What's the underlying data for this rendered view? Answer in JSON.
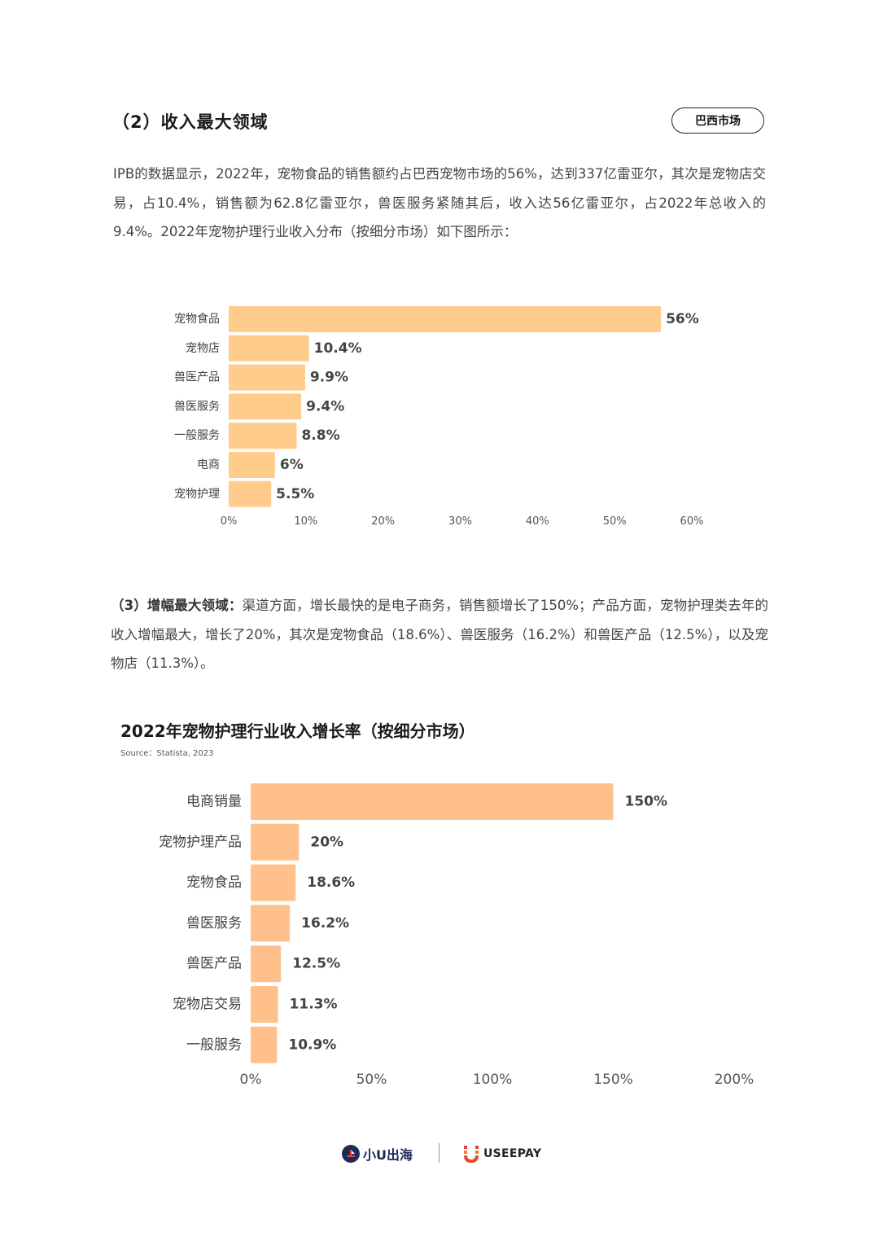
{
  "section": {
    "title": "（2）收入最大领域",
    "tag": "巴西市场"
  },
  "paragraph1": "IPB的数据显示，2022年，宠物食品的销售额约占巴西宠物市场的56%，达到337亿雷亚尔，其次是宠物店交易，占10.4%，销售额为62.8亿雷亚尔，兽医服务紧随其后，收入达56亿雷亚尔，占2022年总收入的9.4%。2022年宠物护理行业收入分布（按细分市场）如下图所示：",
  "paragraph2": {
    "lead": "（3）增幅最大领域：",
    "body": "渠道方面，增长最快的是电子商务，销售额增长了150%；产品方面，宠物护理类去年的收入增幅最大，增长了20%，其次是宠物食品（18.6%）、兽医服务（16.2%）和兽医产品（12.5%），以及宠物店（11.3%）。"
  },
  "chart_data": [
    {
      "type": "bar",
      "orientation": "horizontal",
      "title": "",
      "categories": [
        "宠物食品",
        "宠物店",
        "兽医产品",
        "兽医服务",
        "一般服务",
        "电商",
        "宠物护理"
      ],
      "values": [
        56,
        10.4,
        9.9,
        9.4,
        8.8,
        6,
        5.5
      ],
      "value_labels": [
        "56%",
        "10.4%",
        "9.9%",
        "9.4%",
        "8.8%",
        "6%",
        "5.5%"
      ],
      "xlim": [
        0,
        60
      ],
      "ticks": [
        "0%",
        "10%",
        "20%",
        "30%",
        "40%",
        "50%",
        "60%"
      ],
      "grid": false,
      "color": "#ffcc8c"
    },
    {
      "type": "bar",
      "orientation": "horizontal",
      "title": "2022年宠物护理行业收入增长率（按细分市场）",
      "source": "Source：Statista, 2023",
      "categories": [
        "电商销量",
        "宠物护理产品",
        "宠物食品",
        "兽医服务",
        "兽医产品",
        "宠物店交易",
        "一般服务"
      ],
      "values": [
        150,
        20,
        18.6,
        16.2,
        12.5,
        11.3,
        10.9
      ],
      "value_labels": [
        "150%",
        "20%",
        "18.6%",
        "16.2%",
        "12.5%",
        "11.3%",
        "10.9%"
      ],
      "xlim": [
        0,
        200
      ],
      "ticks": [
        "0%",
        "50%",
        "100%",
        "150%",
        "200%"
      ],
      "grid": false,
      "color": "#ffc08c"
    }
  ],
  "footer": {
    "brand1": "小U出海",
    "brand2": "USEEPAY",
    "brand1_color": "#1c2a5c",
    "brand2_color": "#e8452c"
  }
}
